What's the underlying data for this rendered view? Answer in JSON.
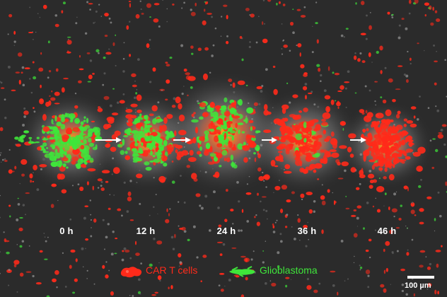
{
  "timepoints": [
    {
      "label": "0 h"
    },
    {
      "label": "12 h"
    },
    {
      "label": "24 h"
    },
    {
      "label": "36 h"
    },
    {
      "label": "46 h"
    }
  ],
  "legend": {
    "car_t": {
      "label": "CAR T cells",
      "color": "#ff2a1a"
    },
    "glioblastoma": {
      "label": "Glioblastoma",
      "color": "#3fe53a"
    }
  },
  "scale_bar": {
    "label": "100 µm"
  },
  "colors": {
    "background": "#2b2b2b",
    "text": "#ffffff"
  }
}
